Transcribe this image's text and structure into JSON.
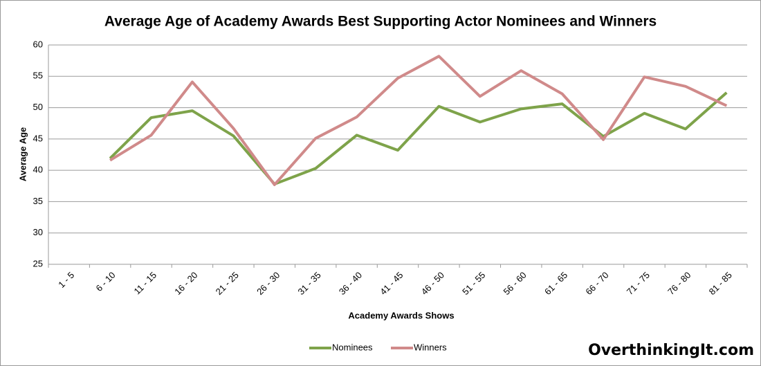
{
  "chart_data": {
    "type": "line",
    "title": "Average Age of Academy Awards Best Supporting Actor Nominees and Winners",
    "x_label": "Academy Awards Shows",
    "y_label": "Average Age",
    "watermark": "OverthinkingIt.com",
    "categories": [
      "1 - 5",
      "6 - 10",
      "11 - 15",
      "16 - 20",
      "21 - 25",
      "26 - 30",
      "31 - 35",
      "36 - 40",
      "41 - 45",
      "46 - 50",
      "51 - 55",
      "56 - 60",
      "61 - 65",
      "66 - 70",
      "71 - 75",
      "76 - 80",
      "81 - 85"
    ],
    "series": [
      {
        "name": "Nominees",
        "color": "#7ea34a",
        "values": [
          null,
          41.9,
          48.4,
          49.5,
          45.5,
          37.8,
          40.3,
          45.6,
          43.2,
          50.2,
          47.7,
          49.8,
          50.6,
          45.4,
          49.1,
          46.6,
          52.4
        ]
      },
      {
        "name": "Winners",
        "color": "#d08a8a",
        "values": [
          null,
          41.6,
          45.6,
          54.1,
          46.7,
          37.7,
          45.1,
          48.5,
          54.7,
          58.2,
          51.8,
          55.9,
          52.2,
          44.9,
          54.9,
          53.4,
          50.3
        ]
      }
    ],
    "ylim": [
      25,
      60
    ],
    "yticks": [
      25,
      30,
      35,
      40,
      45,
      50,
      55,
      60
    ],
    "grid": true,
    "legend": "bottom"
  }
}
